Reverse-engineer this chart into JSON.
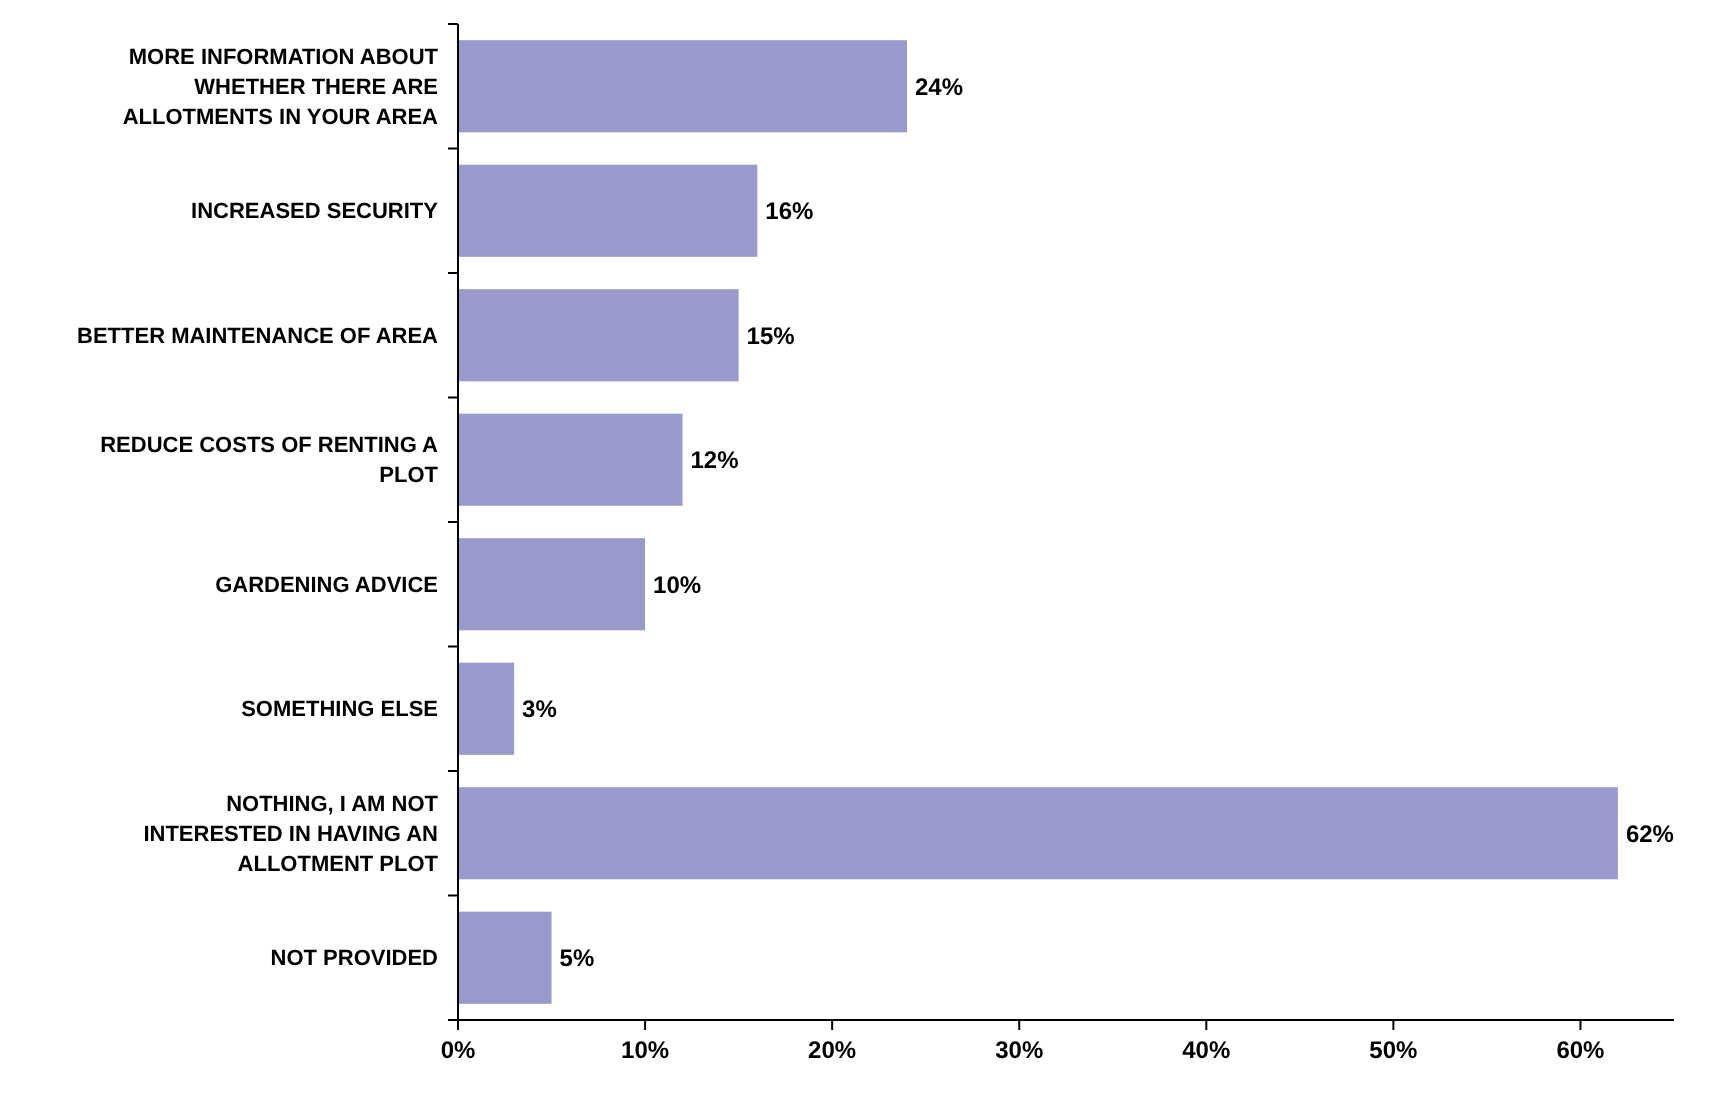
{
  "chart_data": {
    "type": "bar",
    "orientation": "horizontal",
    "categories": [
      "MORE INFORMATION ABOUT WHETHER THERE ARE ALLOTMENTS IN YOUR AREA",
      "INCREASED SECURITY",
      "BETTER MAINTENANCE OF AREA",
      "REDUCE COSTS OF RENTING A PLOT",
      "GARDENING ADVICE",
      "SOMETHING ELSE",
      "NOTHING, I AM NOT INTERESTED IN HAVING AN ALLOTMENT PLOT",
      "NOT PROVIDED"
    ],
    "values": [
      24,
      16,
      15,
      12,
      10,
      3,
      62,
      5
    ],
    "value_labels": [
      "24%",
      "16%",
      "15%",
      "12%",
      "10%",
      "3%",
      "62%",
      "5%"
    ],
    "color": "#9999cc",
    "xlim": [
      0,
      65
    ],
    "xticks": [
      {
        "value": 0,
        "label": "0%"
      },
      {
        "value": 10,
        "label": "10%"
      },
      {
        "value": 20,
        "label": "20%"
      },
      {
        "value": 30,
        "label": "30%"
      },
      {
        "value": 40,
        "label": "40%"
      },
      {
        "value": 50,
        "label": "50%"
      },
      {
        "value": 60,
        "label": "60%"
      }
    ]
  }
}
